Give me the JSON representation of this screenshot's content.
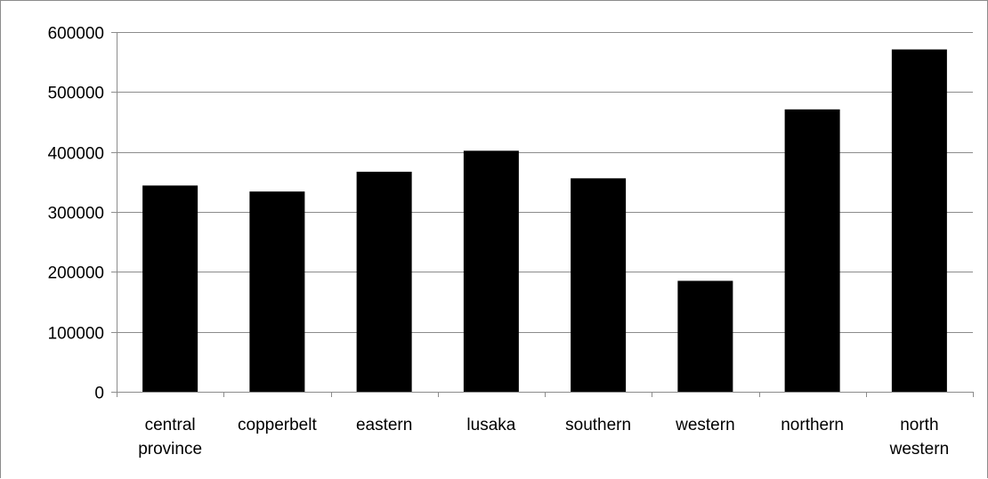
{
  "chart_data": {
    "type": "bar",
    "categories": [
      [
        "central",
        "province"
      ],
      [
        "copperbelt"
      ],
      [
        "eastern"
      ],
      [
        "lusaka"
      ],
      [
        "southern"
      ],
      [
        "western"
      ],
      [
        "northern"
      ],
      [
        "north",
        "western"
      ]
    ],
    "values": [
      344000,
      334000,
      367000,
      402000,
      356000,
      185000,
      471000,
      571000
    ],
    "ylim": [
      0,
      600000
    ],
    "y_ticks": [
      "0",
      "100000",
      "200000",
      "300000",
      "400000",
      "500000",
      "600000"
    ],
    "grid": true,
    "legend": "none",
    "bar_color": "#000000",
    "grid_color": "#8c8c8c"
  }
}
